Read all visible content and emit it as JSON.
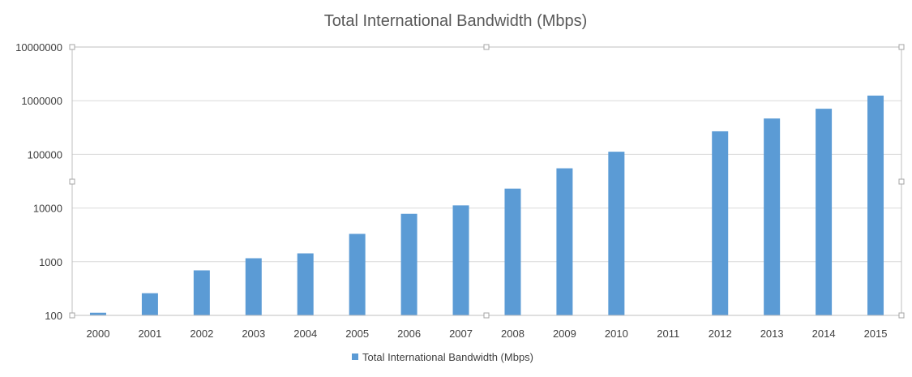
{
  "chart_data": {
    "type": "bar",
    "title": "Total International Bandwidth (Mbps)",
    "xlabel": "",
    "ylabel": "",
    "yscale": "log",
    "ylim": [
      100,
      10000000
    ],
    "ytick_labels": [
      "100",
      "1000",
      "10000",
      "100000",
      "1000000",
      "10000000"
    ],
    "ytick_values": [
      100,
      1000,
      10000,
      100000,
      1000000,
      10000000
    ],
    "categories": [
      "2000",
      "2001",
      "2002",
      "2003",
      "2004",
      "2005",
      "2006",
      "2007",
      "2008",
      "2009",
      "2010",
      "2011",
      "2012",
      "2013",
      "2014",
      "2015"
    ],
    "series": [
      {
        "name": "Total International Bandwidth (Mbps)",
        "color": "#5B9BD5",
        "values": [
          112,
          259,
          690,
          1160,
          1430,
          3300,
          7800,
          11200,
          23000,
          55000,
          112000,
          null,
          269000,
          466000,
          708000,
          1245000
        ]
      }
    ],
    "grid": true,
    "legend_position": "bottom"
  }
}
